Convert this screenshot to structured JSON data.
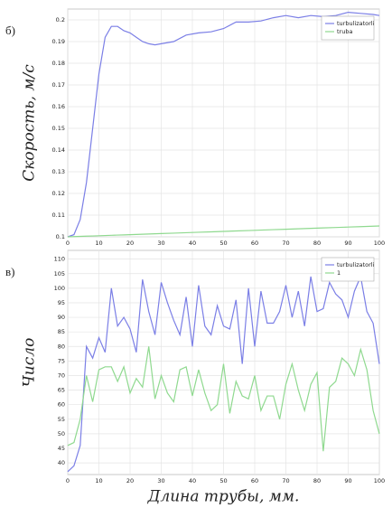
{
  "chart_data": [
    {
      "type": "line",
      "panel_label": "б)",
      "ylabel": "Скорость, м/с",
      "x": [
        0,
        2,
        4,
        6,
        8,
        10,
        12,
        14,
        16,
        18,
        20,
        22,
        24,
        26,
        28,
        30,
        34,
        38,
        42,
        46,
        50,
        54,
        58,
        62,
        66,
        70,
        74,
        78,
        82,
        86,
        90,
        94,
        98,
        100
      ],
      "series": [
        {
          "name": "turbulizatorli",
          "color": "#7b7fe6",
          "values": [
            0.1,
            0.101,
            0.108,
            0.125,
            0.15,
            0.175,
            0.192,
            0.197,
            0.197,
            0.195,
            0.194,
            0.192,
            0.19,
            0.189,
            0.1885,
            0.189,
            0.19,
            0.193,
            0.194,
            0.1945,
            0.196,
            0.199,
            0.199,
            0.1995,
            0.201,
            0.202,
            0.201,
            0.202,
            0.2015,
            0.202,
            0.2035,
            0.203,
            0.2025,
            0.202
          ]
        },
        {
          "name": "truba",
          "color": "#8fd98f",
          "values": [
            0.1,
            0.1001,
            0.1002,
            0.1003,
            0.1004,
            0.1005,
            0.1006,
            0.1007,
            0.1008,
            0.1009,
            0.101,
            0.1011,
            0.1012,
            0.1013,
            0.1014,
            0.1015,
            0.1017,
            0.1019,
            0.1021,
            0.1023,
            0.1025,
            0.1027,
            0.1029,
            0.1031,
            0.1033,
            0.1035,
            0.1037,
            0.1039,
            0.1041,
            0.1043,
            0.1045,
            0.1047,
            0.1049,
            0.105
          ]
        }
      ],
      "xlim": [
        0,
        100
      ],
      "xticks": [
        0,
        10,
        20,
        30,
        40,
        50,
        60,
        70,
        80,
        90,
        100
      ],
      "ylim": [
        0.1,
        0.205
      ],
      "yticks": [
        0.1,
        0.11,
        0.12,
        0.13,
        0.14,
        0.15,
        0.16,
        0.17,
        0.18,
        0.19,
        0.2
      ],
      "grid": true,
      "legend": "top-right"
    },
    {
      "type": "line",
      "panel_label": "в)",
      "ylabel": "Число",
      "xlabel": "Длина трубы, мм.",
      "x": [
        0,
        2,
        4,
        6,
        8,
        10,
        12,
        14,
        16,
        18,
        20,
        22,
        24,
        26,
        28,
        30,
        32,
        34,
        36,
        38,
        40,
        42,
        44,
        46,
        48,
        50,
        52,
        54,
        56,
        58,
        60,
        62,
        64,
        66,
        68,
        70,
        72,
        74,
        76,
        78,
        80,
        82,
        84,
        86,
        88,
        90,
        92,
        94,
        96,
        98,
        100
      ],
      "series": [
        {
          "name": "turbulizatorli",
          "color": "#7b7fe6",
          "values": [
            37,
            39,
            46,
            80,
            76,
            83,
            78,
            100,
            87,
            90,
            86,
            78,
            103,
            92,
            84,
            102,
            95,
            89,
            84,
            97,
            80,
            101,
            87,
            84,
            94,
            87,
            86,
            96,
            74,
            100,
            80,
            99,
            88,
            88,
            92,
            101,
            90,
            99,
            87,
            104,
            92,
            93,
            102,
            98,
            96,
            90,
            99,
            104,
            92,
            88,
            74
          ]
        },
        {
          "name": "1",
          "color": "#8fd98f",
          "values": [
            46,
            47,
            55,
            70,
            61,
            72,
            73,
            73,
            68,
            73,
            64,
            69,
            66,
            80,
            62,
            70,
            64,
            61,
            72,
            73,
            63,
            72,
            64,
            58,
            60,
            74,
            57,
            68,
            63,
            62,
            70,
            58,
            63,
            63,
            55,
            67,
            74,
            65,
            58,
            67,
            71,
            44,
            66,
            68,
            76,
            74,
            70,
            79,
            72,
            58,
            50
          ]
        }
      ],
      "xlim": [
        0,
        100
      ],
      "xticks": [
        0,
        10,
        20,
        30,
        40,
        50,
        60,
        70,
        80,
        90,
        100
      ],
      "ylim": [
        36,
        113
      ],
      "yticks": [
        40,
        45,
        50,
        55,
        60,
        65,
        70,
        75,
        80,
        85,
        90,
        95,
        100,
        105,
        110
      ],
      "grid": true,
      "legend": "top-right"
    }
  ]
}
